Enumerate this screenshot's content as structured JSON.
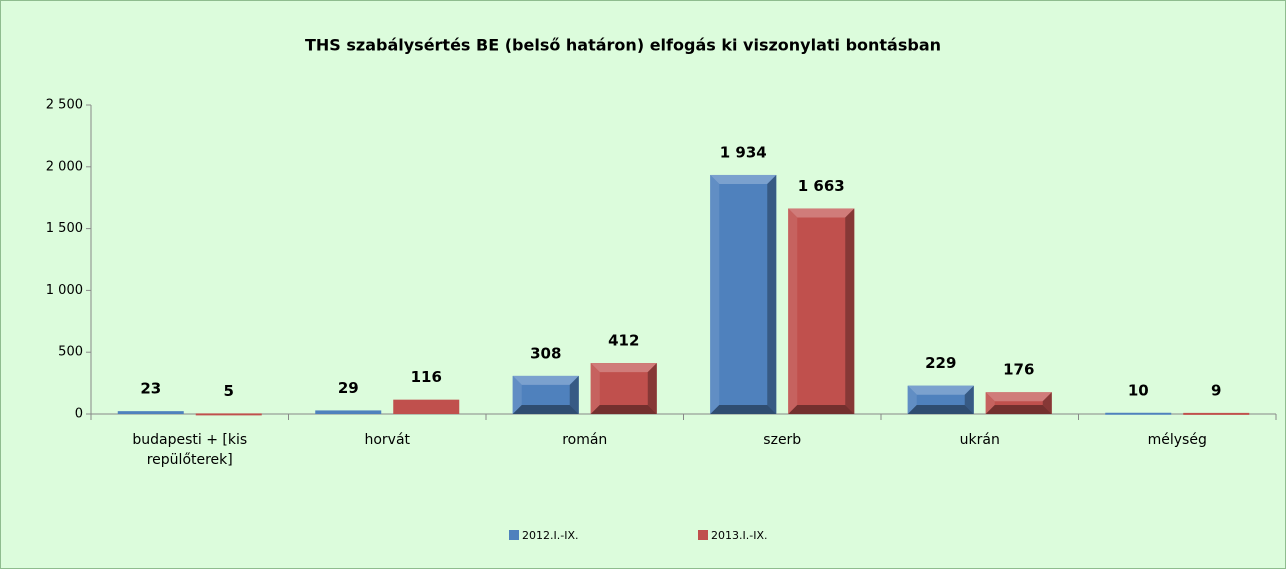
{
  "chart_data": {
    "type": "bar",
    "title": "THS szabálysértés BE (belső határon) elfogás ki viszonylati bontásban",
    "categories": [
      "budapesti + [kis repülőterek]",
      "horvát",
      "román",
      "szerb",
      "ukrán",
      "mélység"
    ],
    "series": [
      {
        "name": "2012.I.-IX.",
        "color": "#4f81bd",
        "values": [
          23,
          29,
          308,
          1934,
          229,
          10
        ],
        "value_labels": [
          "23",
          "29",
          "308",
          "1 934",
          "229",
          "10"
        ]
      },
      {
        "name": "2013.I.-IX.",
        "color": "#c0504d",
        "values": [
          5,
          116,
          412,
          1663,
          176,
          9
        ],
        "value_labels": [
          "5",
          "116",
          "412",
          "1 663",
          "176",
          "9"
        ]
      }
    ],
    "ylim": [
      0,
      2500
    ],
    "yticks": [
      0,
      500,
      {
        "value": 1000,
        "label": "1 000"
      },
      {
        "value": 1500,
        "label": "1 500"
      },
      {
        "value": 2000,
        "label": "2 000"
      },
      {
        "value": 2500,
        "label": "2 500"
      }
    ],
    "legend": "bottom"
  }
}
